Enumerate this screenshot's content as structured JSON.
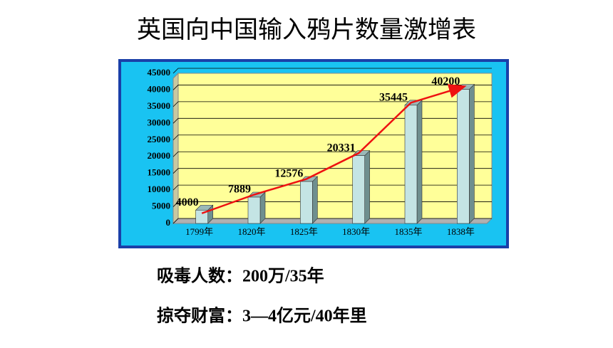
{
  "chart_data": {
    "type": "bar",
    "title": "英国向中国输入鸦片数量激增表",
    "categories": [
      "1799年",
      "1820年",
      "1825年",
      "1830年",
      "1835年",
      "1838年"
    ],
    "values": [
      4000,
      7889,
      12576,
      20331,
      35445,
      40200
    ],
    "color": "#c4e4e4",
    "trend_color": "#ee1111",
    "ylim": [
      0,
      45000
    ],
    "yticks": [
      0,
      5000,
      10000,
      15000,
      20000,
      25000,
      30000,
      35000,
      40000,
      45000
    ],
    "grid": true,
    "annotations": [
      "吸毒人数：200万/35年",
      "掠夺财富：3—4亿元/40年里"
    ]
  }
}
